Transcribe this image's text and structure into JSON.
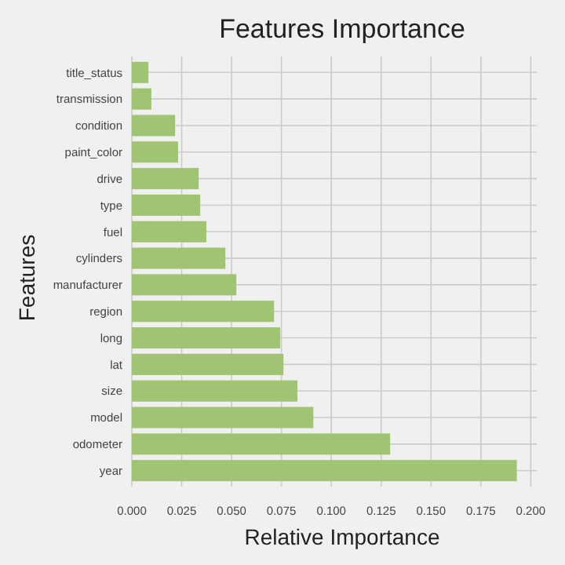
{
  "chart_data": {
    "type": "bar",
    "orientation": "horizontal",
    "title": "Features Importance",
    "xlabel": "Relative Importance",
    "ylabel": "Features",
    "categories": [
      "title_status",
      "transmission",
      "condition",
      "paint_color",
      "drive",
      "type",
      "fuel",
      "cylinders",
      "manufacturer",
      "region",
      "long",
      "lat",
      "size",
      "model",
      "odometer",
      "year"
    ],
    "values": [
      0.0083,
      0.0098,
      0.0217,
      0.0232,
      0.0335,
      0.0343,
      0.0374,
      0.0469,
      0.0524,
      0.0713,
      0.0744,
      0.076,
      0.083,
      0.091,
      0.1295,
      0.193
    ],
    "color": "#a0c474",
    "xlim": [
      0,
      0.203
    ],
    "xticks": [
      {
        "value": 0,
        "label": "0.000"
      },
      {
        "value": 0.025,
        "label": "0.025"
      },
      {
        "value": 0.05,
        "label": "0.050"
      },
      {
        "value": 0.075,
        "label": "0.075"
      },
      {
        "value": 0.1,
        "label": "0.100"
      },
      {
        "value": 0.125,
        "label": "0.125"
      },
      {
        "value": 0.15,
        "label": "0.150"
      },
      {
        "value": 0.175,
        "label": "0.175"
      },
      {
        "value": 0.2,
        "label": "0.200"
      }
    ],
    "grid": true
  }
}
